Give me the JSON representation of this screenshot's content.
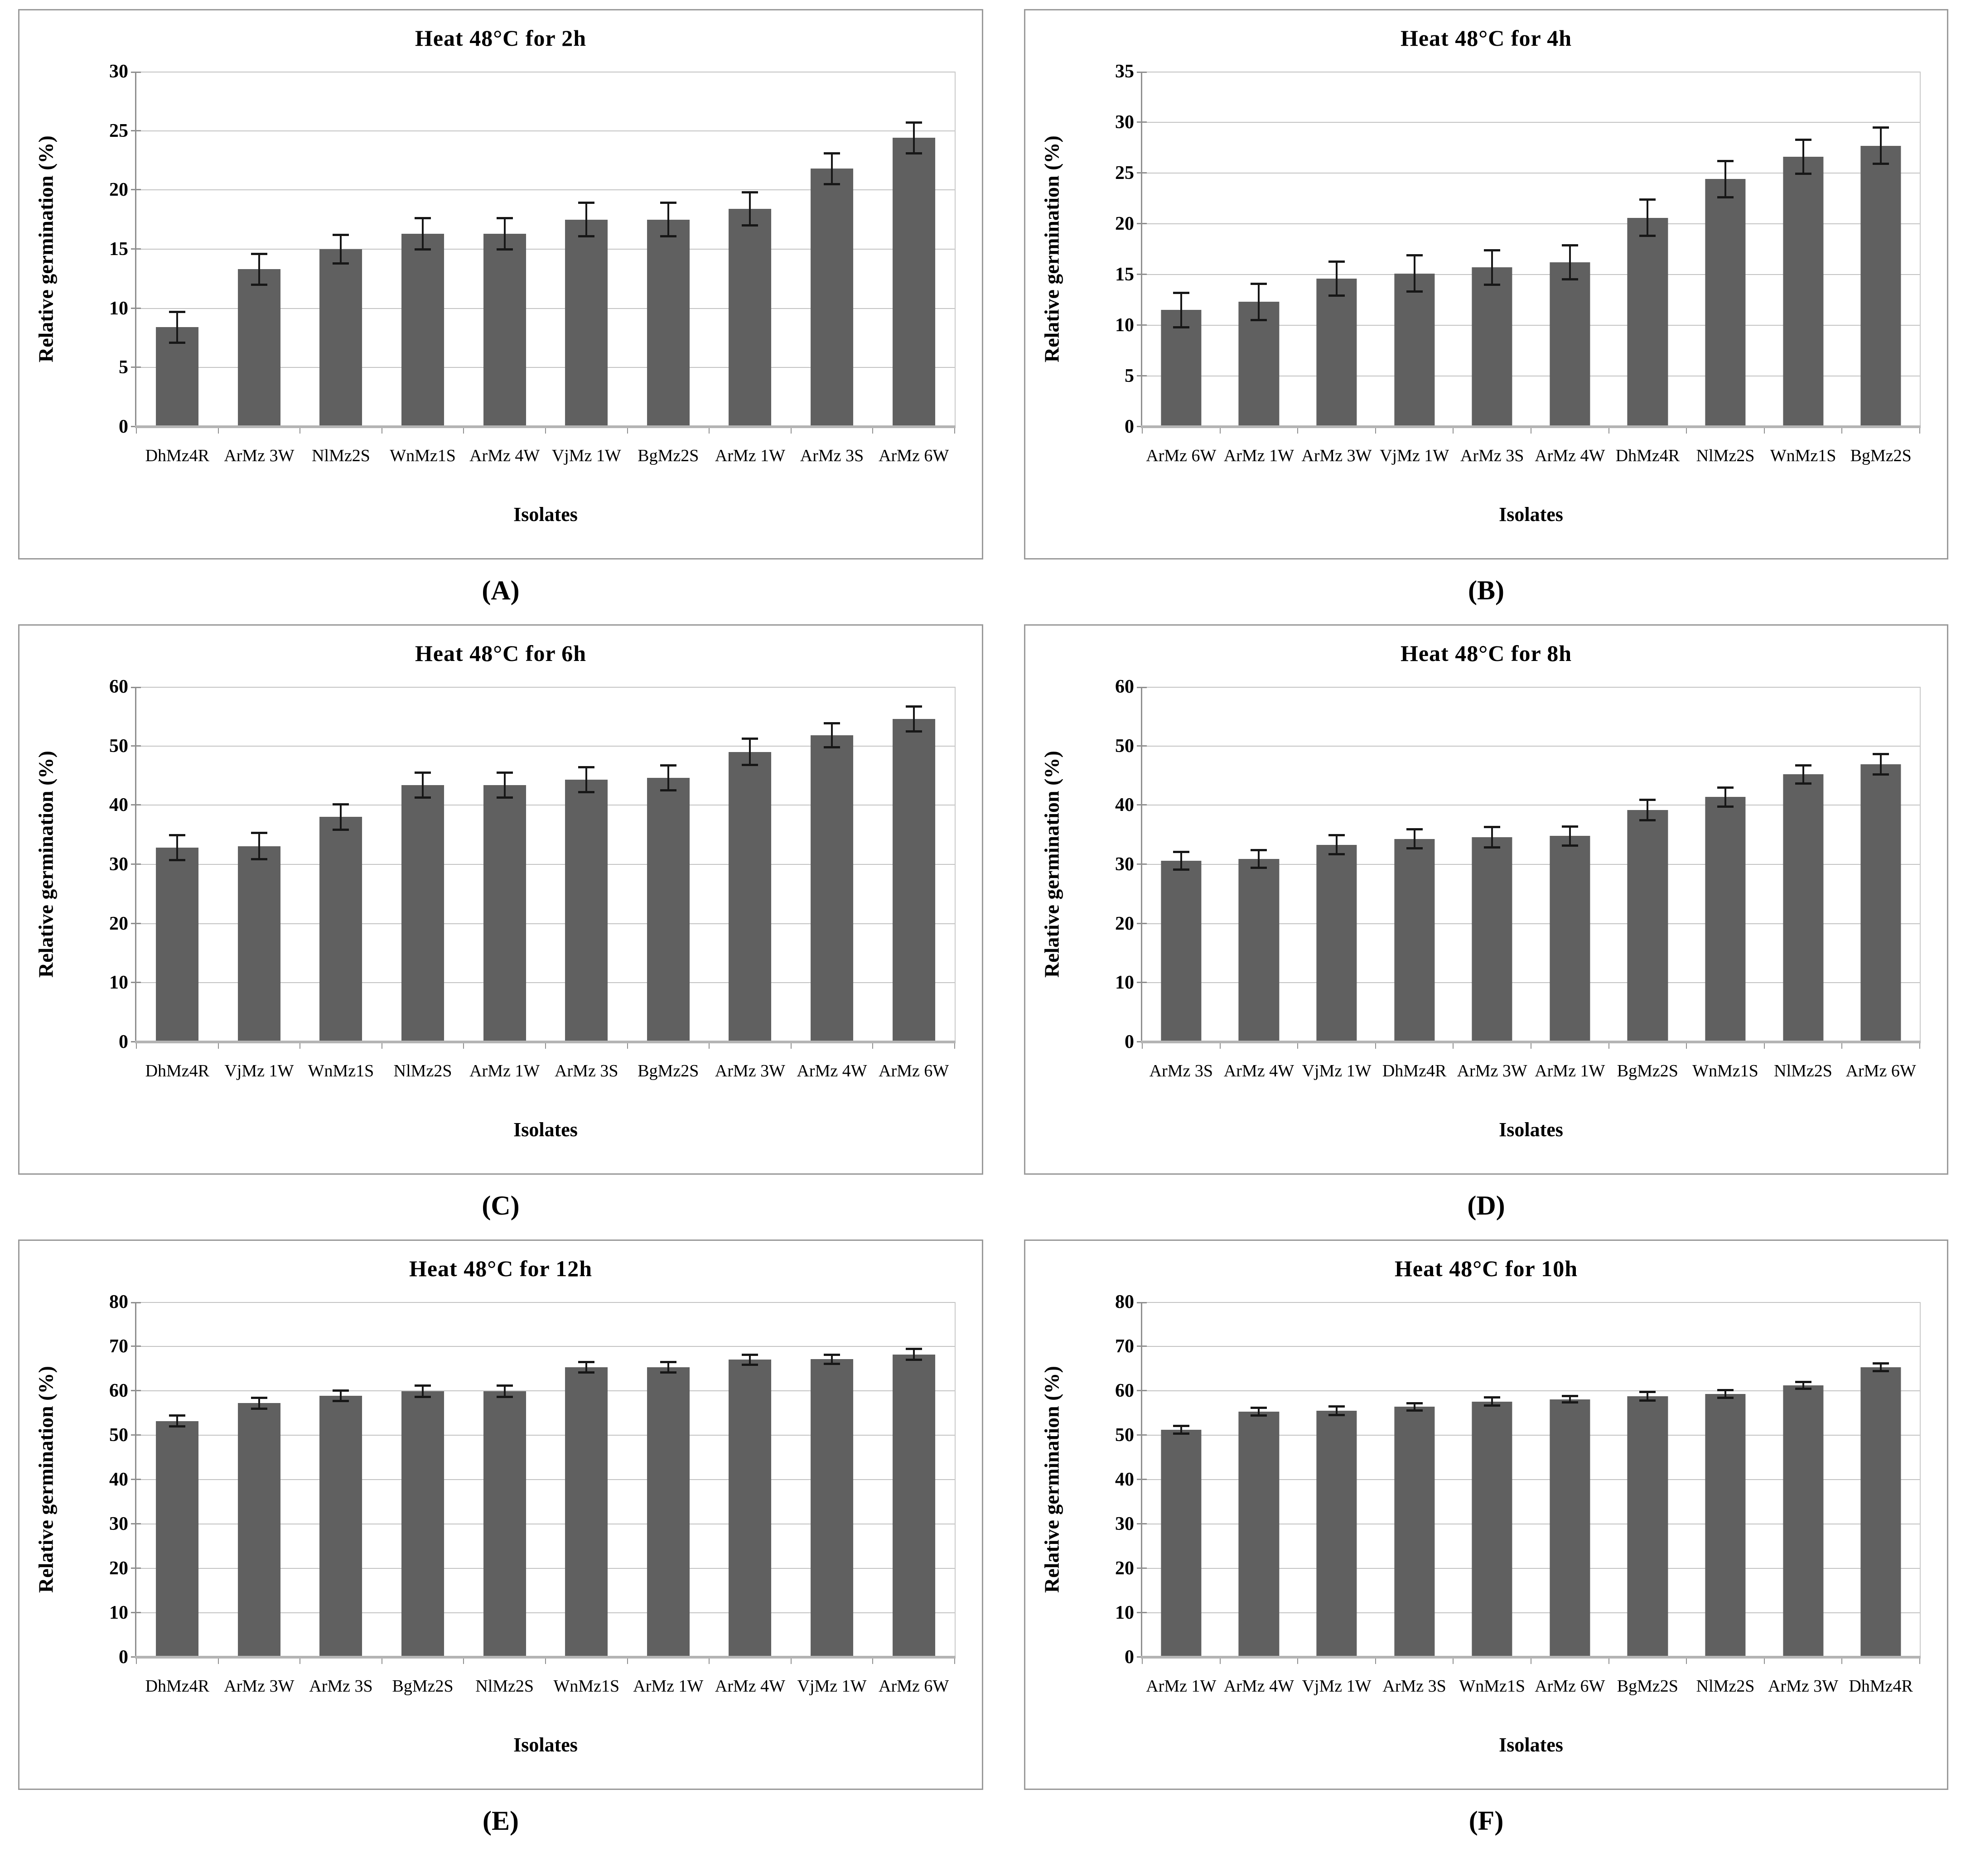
{
  "figure": {
    "description": "Six-panel bar chart figure of relative germination after heat treatment at 48 degrees C",
    "colors": {
      "bar": "#606060",
      "gridline": "#c3c3c3",
      "axis": "#8f8f8f",
      "baseline": "#b4b4b4",
      "panel_border": "#9a9a9a",
      "error_bar": "#171717",
      "text": "#000000",
      "background": "#ffffff"
    }
  },
  "chart_data": [
    {
      "type": "bar",
      "caption": "(A)",
      "title": "Heat 48°C for 2h",
      "ylabel": "Relative germination (%)",
      "xlabel": "Isolates",
      "ylim": [
        0,
        30
      ],
      "ytick_step": 5,
      "grid": true,
      "categories": [
        "DhMz4R",
        "ArMz 3W",
        "NlMz2S",
        "WnMz1S",
        "ArMz 4W",
        "VjMz 1W",
        "BgMz2S",
        "ArMz 1W",
        "ArMz 3S",
        "ArMz 6W"
      ],
      "values": [
        8.4,
        13.3,
        15.0,
        16.3,
        16.3,
        17.5,
        17.5,
        18.4,
        21.8,
        24.4
      ],
      "errors": [
        1.4,
        1.4,
        1.3,
        1.4,
        1.4,
        1.5,
        1.5,
        1.5,
        1.4,
        1.4
      ]
    },
    {
      "type": "bar",
      "caption": "(B)",
      "title": "Heat 48°C for 4h",
      "ylabel": "Relative germination (%)",
      "xlabel": "Isolates",
      "ylim": [
        0,
        35
      ],
      "ytick_step": 5,
      "grid": true,
      "categories": [
        "ArMz 6W",
        "ArMz 1W",
        "ArMz 3W",
        "VjMz 1W",
        "ArMz 3S",
        "ArMz 4W",
        "DhMz4R",
        "NlMz2S",
        "WnMz1S",
        "BgMz2S"
      ],
      "values": [
        11.5,
        12.3,
        14.6,
        15.1,
        15.7,
        16.2,
        20.6,
        24.4,
        26.6,
        27.7
      ],
      "errors": [
        1.8,
        1.9,
        1.8,
        1.9,
        1.8,
        1.8,
        1.9,
        1.9,
        1.8,
        1.9
      ]
    },
    {
      "type": "bar",
      "caption": "(C)",
      "title": "Heat 48°C for 6h",
      "ylabel": "Relative germination (%)",
      "xlabel": "Isolates",
      "ylim": [
        0,
        60
      ],
      "ytick_step": 10,
      "grid": true,
      "categories": [
        "DhMz4R",
        "VjMz 1W",
        "WnMz1S",
        "NlMz2S",
        "ArMz 1W",
        "ArMz 3S",
        "BgMz2S",
        "ArMz 3W",
        "ArMz 4W",
        "ArMz 6W"
      ],
      "values": [
        32.8,
        33.1,
        38.0,
        43.4,
        43.4,
        44.3,
        44.6,
        49.0,
        51.8,
        54.6
      ],
      "errors": [
        2.3,
        2.4,
        2.3,
        2.3,
        2.3,
        2.3,
        2.3,
        2.4,
        2.2,
        2.3
      ]
    },
    {
      "type": "bar",
      "caption": "(D)",
      "title": "Heat 48°C for 8h",
      "ylabel": "Relative germination (%)",
      "xlabel": "Isolates",
      "ylim": [
        0,
        60
      ],
      "ytick_step": 10,
      "grid": true,
      "categories": [
        "ArMz 3S",
        "ArMz 4W",
        "VjMz 1W",
        "DhMz4R",
        "ArMz 3W",
        "ArMz 1W",
        "BgMz2S",
        "WnMz1S",
        "NlMz2S",
        "ArMz 6W"
      ],
      "values": [
        30.6,
        30.9,
        33.3,
        34.3,
        34.6,
        34.8,
        39.2,
        41.4,
        45.2,
        46.9
      ],
      "errors": [
        1.7,
        1.7,
        1.8,
        1.8,
        1.9,
        1.8,
        1.9,
        1.8,
        1.7,
        1.9
      ]
    },
    {
      "type": "bar",
      "caption": "(E)",
      "title": "Heat 48°C for 12h",
      "ylabel": "Relative germination (%)",
      "xlabel": "Isolates",
      "ylim": [
        0,
        80
      ],
      "ytick_step": 10,
      "grid": true,
      "categories": [
        "DhMz4R",
        "ArMz 3W",
        "ArMz 3S",
        "BgMz2S",
        "NlMz2S",
        "WnMz1S",
        "ArMz 1W",
        "ArMz 4W",
        "VjMz 1W",
        "ArMz 6W"
      ],
      "values": [
        53.2,
        57.2,
        58.9,
        59.9,
        59.9,
        65.3,
        65.3,
        67.0,
        67.1,
        68.2
      ],
      "errors": [
        1.5,
        1.5,
        1.4,
        1.5,
        1.5,
        1.4,
        1.4,
        1.4,
        1.3,
        1.5
      ]
    },
    {
      "type": "bar",
      "caption": "(F)",
      "title": "Heat 48°C for 10h",
      "ylabel": "Relative germination (%)",
      "xlabel": "Isolates",
      "ylim": [
        0,
        80
      ],
      "ytick_step": 10,
      "grid": true,
      "categories": [
        "ArMz 1W",
        "ArMz 4W",
        "VjMz 1W",
        "ArMz 3S",
        "WnMz1S",
        "ArMz 6W",
        "BgMz2S",
        "NlMz2S",
        "ArMz 3W",
        "DhMz4R"
      ],
      "values": [
        51.2,
        55.3,
        55.5,
        56.4,
        57.6,
        58.1,
        58.8,
        59.3,
        61.2,
        65.3
      ],
      "errors": [
        1.1,
        1.1,
        1.2,
        1.1,
        1.2,
        1.0,
        1.2,
        1.1,
        1.0,
        1.1
      ]
    }
  ]
}
